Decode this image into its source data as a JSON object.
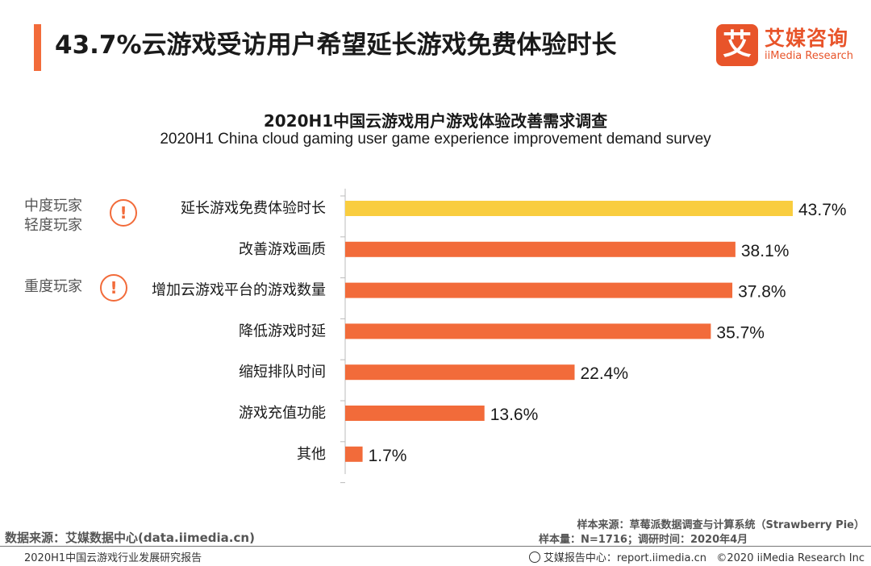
{
  "header": {
    "title": "43.7%云游戏受访用户希望延长游戏免费体验时长",
    "logo_mark": "艾",
    "logo_cn": "艾媒咨询",
    "logo_en": "iiMedia Research"
  },
  "colors": {
    "accent": "#f26b3a",
    "bar": "#f26b3a",
    "bar_highlight": "#f9cd3f",
    "axis": "#bbbbbb"
  },
  "groups": [
    {
      "label_lines": [
        "中度玩家",
        "轻度玩家"
      ],
      "icon": "exclamation-icon",
      "icon_glyph": "!"
    },
    {
      "label_lines": [
        "重度玩家"
      ],
      "icon": "exclamation-icon",
      "icon_glyph": "!"
    }
  ],
  "chart_data": {
    "type": "bar",
    "orientation": "horizontal",
    "title": "2020H1中国云游戏用户游戏体验改善需求调查",
    "subtitle": "2020H1 China cloud gaming user game experience improvement demand survey",
    "categories": [
      "延长游戏免费体验时长",
      "改善游戏画质",
      "增加云游戏平台的游戏数量",
      "降低游戏时延",
      "缩短排队时间",
      "游戏充值功能",
      "其他"
    ],
    "values": [
      43.7,
      38.1,
      37.8,
      35.7,
      22.4,
      13.6,
      1.7
    ],
    "value_labels": [
      "43.7%",
      "38.1%",
      "37.8%",
      "35.7%",
      "22.4%",
      "13.6%",
      "1.7%"
    ],
    "highlight_index": 0,
    "unit": "%",
    "xlim": [
      0,
      45
    ]
  },
  "footer": {
    "source": "数据来源：艾媒数据中心(data.iimedia.cn)",
    "sample_source": "样本来源：草莓派数据调查与计算系统（Strawberry Pie）",
    "sample_size": "样本量：N=1716；调研时间：2020年4月",
    "report_name": "2020H1中国云游戏行业发展研究报告",
    "report_center": "艾媒报告中心：report.iimedia.cn",
    "copyright": "©2020  iiMedia Research  Inc"
  }
}
